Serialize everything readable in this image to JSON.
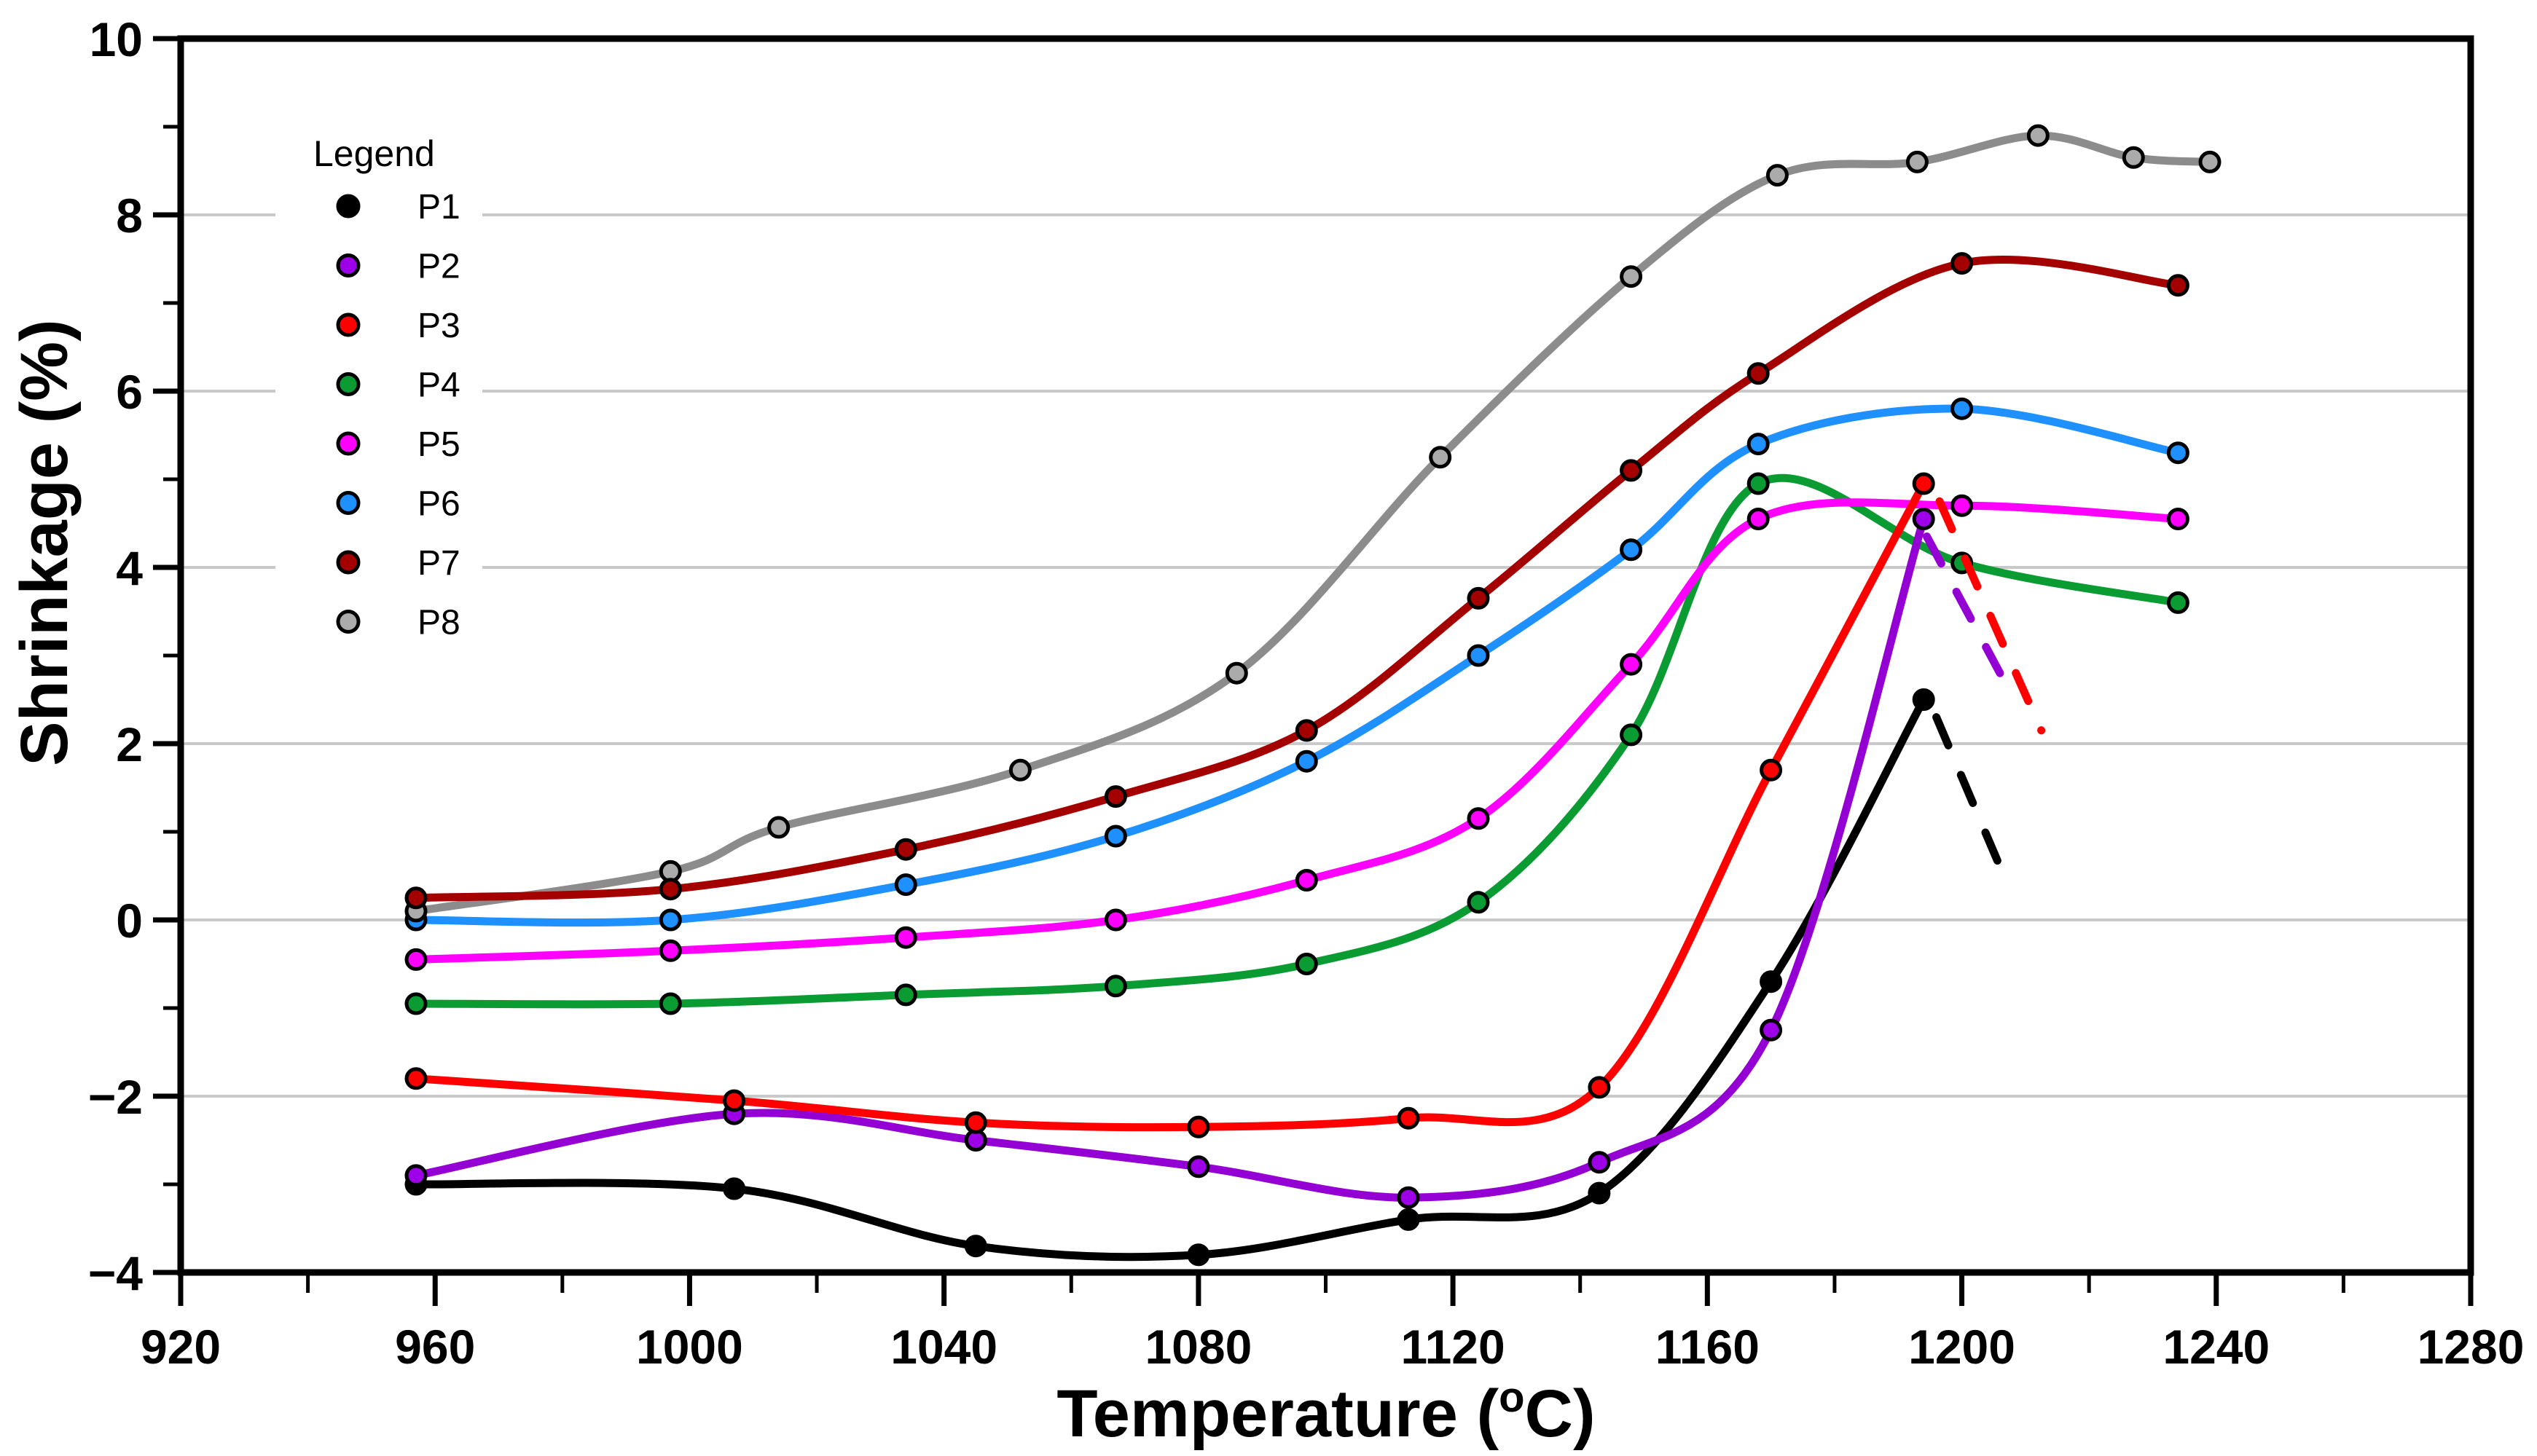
{
  "chart_data": {
    "type": "line",
    "title": "",
    "xlabel": {
      "text": "Temperature  (",
      "sup": "o",
      "suffix": "C)"
    },
    "ylabel": "Shrinkage   (%)",
    "x_axis": {
      "min": 920,
      "max": 1280,
      "major_step": 40,
      "minor_step": 20,
      "tick_labels": [
        "920",
        "960",
        "1000",
        "1040",
        "1080",
        "1120",
        "1160",
        "1200",
        "1240",
        "1280"
      ]
    },
    "y_axis": {
      "min": -4,
      "max": 10,
      "major_step": 2,
      "minor_step": 1,
      "tick_labels": [
        "10",
        "8",
        "6",
        "4",
        "2",
        "0",
        "−2",
        "−4"
      ]
    },
    "grid": {
      "show_horizontal": true,
      "values": [
        8,
        6,
        4,
        2,
        0,
        -2
      ],
      "color": "#C9C9C9"
    },
    "legend": {
      "title": "Legend",
      "position": "top-left"
    },
    "series": [
      {
        "name": "P1",
        "color": "#000000",
        "marker_fill": "#000000",
        "points": [
          [
            957,
            -3.0
          ],
          [
            1007,
            -3.05
          ],
          [
            1045,
            -3.7
          ],
          [
            1080,
            -3.8
          ],
          [
            1113,
            -3.4
          ],
          [
            1143,
            -3.1
          ],
          [
            1170,
            -0.7
          ],
          [
            1194,
            2.5
          ]
        ]
      },
      {
        "name": "P2",
        "color": "#9400D3",
        "marker_fill": "#9D00E8",
        "points": [
          [
            957,
            -2.9
          ],
          [
            1007,
            -2.2
          ],
          [
            1045,
            -2.5
          ],
          [
            1080,
            -2.8
          ],
          [
            1113,
            -3.15
          ],
          [
            1143,
            -2.75
          ],
          [
            1170,
            -1.25
          ],
          [
            1194,
            4.55
          ]
        ]
      },
      {
        "name": "P3",
        "color": "#FF0000",
        "marker_fill": "#FF0000",
        "points": [
          [
            957,
            -1.8
          ],
          [
            1007,
            -2.05
          ],
          [
            1045,
            -2.3
          ],
          [
            1080,
            -2.35
          ],
          [
            1113,
            -2.25
          ],
          [
            1143,
            -1.9
          ],
          [
            1170,
            1.7
          ],
          [
            1194,
            4.95
          ]
        ]
      },
      {
        "name": "P4",
        "color": "#0B9B33",
        "marker_fill": "#0B9B33",
        "points": [
          [
            957,
            -0.95
          ],
          [
            997,
            -0.95
          ],
          [
            1034,
            -0.85
          ],
          [
            1067,
            -0.75
          ],
          [
            1097,
            -0.5
          ],
          [
            1124,
            0.2
          ],
          [
            1148,
            2.1
          ],
          [
            1168,
            4.95
          ],
          [
            1200,
            4.05
          ],
          [
            1234,
            3.6
          ]
        ]
      },
      {
        "name": "P5",
        "color": "#FF00FF",
        "marker_fill": "#FF00FF",
        "points": [
          [
            957,
            -0.45
          ],
          [
            997,
            -0.35
          ],
          [
            1034,
            -0.2
          ],
          [
            1067,
            0.0
          ],
          [
            1097,
            0.45
          ],
          [
            1124,
            1.15
          ],
          [
            1148,
            2.9
          ],
          [
            1168,
            4.55
          ],
          [
            1200,
            4.7
          ],
          [
            1234,
            4.55
          ]
        ]
      },
      {
        "name": "P6",
        "color": "#1E90FF",
        "marker_fill": "#1E90FF",
        "points": [
          [
            957,
            0.0
          ],
          [
            997,
            0.0
          ],
          [
            1034,
            0.4
          ],
          [
            1067,
            0.95
          ],
          [
            1097,
            1.8
          ],
          [
            1124,
            3.0
          ],
          [
            1148,
            4.2
          ],
          [
            1168,
            5.4
          ],
          [
            1200,
            5.8
          ],
          [
            1234,
            5.3
          ]
        ]
      },
      {
        "name": "P7",
        "color": "#A40000",
        "marker_fill": "#A40000",
        "points": [
          [
            957,
            0.25
          ],
          [
            997,
            0.35
          ],
          [
            1034,
            0.8
          ],
          [
            1067,
            1.4
          ],
          [
            1097,
            2.15
          ],
          [
            1124,
            3.65
          ],
          [
            1148,
            5.1
          ],
          [
            1168,
            6.2
          ],
          [
            1200,
            7.45
          ],
          [
            1234,
            7.2
          ]
        ]
      },
      {
        "name": "P8",
        "color": "#8C8C8C",
        "marker_fill": "#ABABAB",
        "points": [
          [
            957,
            0.1
          ],
          [
            997,
            0.55
          ],
          [
            1014,
            1.05
          ],
          [
            1052,
            1.7
          ],
          [
            1086,
            2.8
          ],
          [
            1118,
            5.25
          ],
          [
            1148,
            7.3
          ],
          [
            1171,
            8.45
          ],
          [
            1193,
            8.6
          ],
          [
            1212,
            8.9
          ],
          [
            1227,
            8.65
          ],
          [
            1239,
            8.6
          ]
        ]
      }
    ],
    "dashed_annotations": [
      {
        "series": "P1",
        "color": "#000000",
        "from": [
          1196,
          2.3
        ],
        "to": [
          1207.5,
          0.35
        ]
      },
      {
        "series": "P2",
        "color": "#9400D3",
        "from": [
          1194.5,
          4.35
        ],
        "to": [
          1206,
          2.8
        ]
      },
      {
        "series": "P3",
        "color": "#FF0000",
        "from": [
          1196.5,
          4.75
        ],
        "to": [
          1212.5,
          2.15
        ]
      }
    ]
  }
}
